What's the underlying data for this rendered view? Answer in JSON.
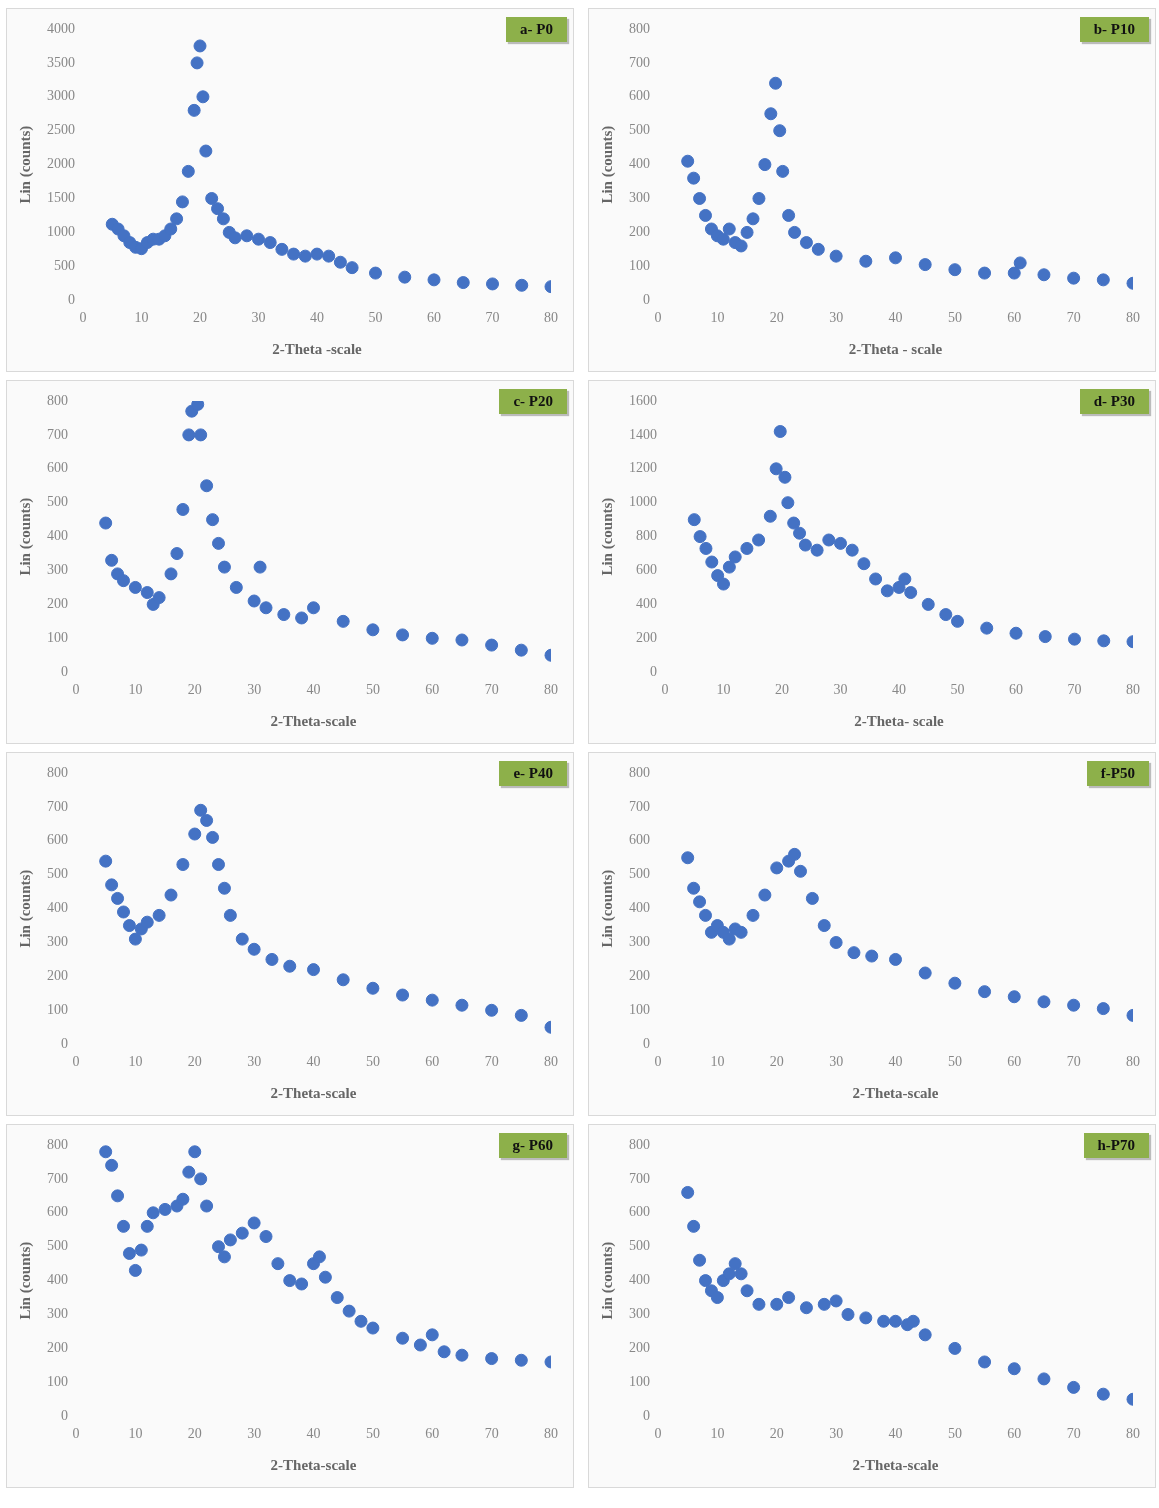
{
  "chart_data": [
    {
      "type": "scatter",
      "title": "a- P0",
      "xlabel": "2-Theta -scale",
      "ylabel": "Lin (counts)",
      "color": "#4472c4",
      "marker": "circle",
      "xlim": [
        0,
        80
      ],
      "xticks": [
        0,
        10,
        20,
        30,
        40,
        50,
        60,
        70,
        80
      ],
      "ylim": [
        0,
        4000
      ],
      "yticks": [
        0,
        500,
        1000,
        1500,
        2000,
        2500,
        3000,
        3500,
        4000
      ],
      "x": [
        5,
        6,
        7,
        8,
        9,
        10,
        11,
        12,
        13,
        14,
        15,
        16,
        17,
        18,
        19,
        19.5,
        20,
        20.5,
        21,
        22,
        23,
        24,
        25,
        26,
        28,
        30,
        32,
        34,
        36,
        38,
        40,
        42,
        44,
        46,
        50,
        55,
        60,
        65,
        70,
        75,
        80
      ],
      "values": [
        1120,
        1050,
        950,
        850,
        780,
        760,
        850,
        900,
        900,
        950,
        1050,
        1200,
        1450,
        1900,
        2800,
        3500,
        3750,
        3000,
        2200,
        1500,
        1350,
        1200,
        1000,
        920,
        950,
        900,
        850,
        750,
        680,
        650,
        680,
        650,
        560,
        480,
        400,
        340,
        300,
        260,
        240,
        220,
        200
      ]
    },
    {
      "type": "scatter",
      "title": "b- P10",
      "xlabel": "2-Theta - scale",
      "ylabel": "Lin (counts)",
      "color": "#4472c4",
      "marker": "circle",
      "xlim": [
        0,
        80
      ],
      "xticks": [
        0,
        10,
        20,
        30,
        40,
        50,
        60,
        70,
        80
      ],
      "ylim": [
        0,
        800
      ],
      "yticks": [
        0,
        100,
        200,
        300,
        400,
        500,
        600,
        700,
        800
      ],
      "x": [
        5,
        6,
        7,
        8,
        9,
        10,
        11,
        12,
        13,
        14,
        15,
        16,
        17,
        18,
        19,
        19.8,
        20.5,
        21,
        22,
        23,
        25,
        27,
        30,
        35,
        40,
        45,
        50,
        55,
        60,
        61,
        65,
        70,
        75,
        80
      ],
      "values": [
        410,
        360,
        300,
        250,
        210,
        190,
        180,
        210,
        170,
        160,
        200,
        240,
        300,
        400,
        550,
        640,
        500,
        380,
        250,
        200,
        170,
        150,
        130,
        115,
        125,
        105,
        90,
        80,
        80,
        110,
        75,
        65,
        60,
        50
      ]
    },
    {
      "type": "scatter",
      "title": "c- P20",
      "xlabel": "2-Theta-scale",
      "ylabel": "Lin (counts)",
      "color": "#4472c4",
      "marker": "circle",
      "xlim": [
        0,
        80
      ],
      "xticks": [
        0,
        10,
        20,
        30,
        40,
        50,
        60,
        70,
        80
      ],
      "ylim": [
        0,
        800
      ],
      "yticks": [
        0,
        100,
        200,
        300,
        400,
        500,
        600,
        700,
        800
      ],
      "x": [
        5,
        6,
        7,
        8,
        10,
        12,
        13,
        14,
        16,
        17,
        18,
        19,
        19.5,
        20.5,
        21,
        22,
        23,
        24,
        25,
        27,
        30,
        31,
        32,
        35,
        38,
        40,
        45,
        50,
        55,
        60,
        65,
        70,
        75,
        80
      ],
      "values": [
        440,
        330,
        290,
        270,
        250,
        235,
        200,
        220,
        290,
        350,
        480,
        700,
        770,
        790,
        700,
        550,
        450,
        380,
        310,
        250,
        210,
        310,
        190,
        170,
        160,
        190,
        150,
        125,
        110,
        100,
        95,
        80,
        65,
        50
      ]
    },
    {
      "type": "scatter",
      "title": "d- P30",
      "xlabel": "2-Theta- scale",
      "ylabel": "Lin (counts)",
      "color": "#4472c4",
      "marker": "circle",
      "xlim": [
        0,
        80
      ],
      "xticks": [
        0,
        10,
        20,
        30,
        40,
        50,
        60,
        70,
        80
      ],
      "ylim": [
        0,
        1600
      ],
      "yticks": [
        0,
        200,
        400,
        600,
        800,
        1000,
        1200,
        1400,
        1600
      ],
      "x": [
        5,
        6,
        7,
        8,
        9,
        10,
        11,
        12,
        14,
        16,
        18,
        19,
        19.7,
        20.5,
        21,
        22,
        23,
        24,
        26,
        28,
        30,
        32,
        34,
        36,
        38,
        40,
        41,
        42,
        45,
        48,
        50,
        55,
        60,
        65,
        70,
        75,
        80
      ],
      "values": [
        900,
        800,
        730,
        650,
        570,
        520,
        620,
        680,
        730,
        780,
        920,
        1200,
        1420,
        1150,
        1000,
        880,
        820,
        750,
        720,
        780,
        760,
        720,
        640,
        550,
        480,
        500,
        550,
        470,
        400,
        340,
        300,
        260,
        230,
        210,
        195,
        185,
        180
      ]
    },
    {
      "type": "scatter",
      "title": "e- P40",
      "xlabel": "2-Theta-scale",
      "ylabel": "Lin (counts)",
      "color": "#4472c4",
      "marker": "circle",
      "xlim": [
        0,
        80
      ],
      "xticks": [
        0,
        10,
        20,
        30,
        40,
        50,
        60,
        70,
        80
      ],
      "ylim": [
        0,
        800
      ],
      "yticks": [
        0,
        100,
        200,
        300,
        400,
        500,
        600,
        700,
        800
      ],
      "x": [
        5,
        6,
        7,
        8,
        9,
        10,
        11,
        12,
        14,
        16,
        18,
        20,
        21,
        22,
        23,
        24,
        25,
        26,
        28,
        30,
        33,
        36,
        40,
        45,
        50,
        55,
        60,
        65,
        70,
        75,
        80
      ],
      "values": [
        540,
        470,
        430,
        390,
        350,
        310,
        340,
        360,
        380,
        440,
        530,
        620,
        690,
        660,
        610,
        530,
        460,
        380,
        310,
        280,
        250,
        230,
        220,
        190,
        165,
        145,
        130,
        115,
        100,
        85,
        50
      ]
    },
    {
      "type": "scatter",
      "title": "f-P50",
      "xlabel": "2-Theta-scale",
      "ylabel": "Lin (counts)",
      "color": "#4472c4",
      "marker": "circle",
      "xlim": [
        0,
        80
      ],
      "xticks": [
        0,
        10,
        20,
        30,
        40,
        50,
        60,
        70,
        80
      ],
      "ylim": [
        0,
        800
      ],
      "yticks": [
        0,
        100,
        200,
        300,
        400,
        500,
        600,
        700,
        800
      ],
      "x": [
        5,
        6,
        7,
        8,
        9,
        10,
        11,
        12,
        13,
        14,
        16,
        18,
        20,
        22,
        23,
        24,
        26,
        28,
        30,
        33,
        36,
        40,
        45,
        50,
        55,
        60,
        65,
        70,
        75,
        80
      ],
      "values": [
        550,
        460,
        420,
        380,
        330,
        350,
        330,
        310,
        340,
        330,
        380,
        440,
        520,
        540,
        560,
        510,
        430,
        350,
        300,
        270,
        260,
        250,
        210,
        180,
        155,
        140,
        125,
        115,
        105,
        85
      ]
    },
    {
      "type": "scatter",
      "title": "g- P60",
      "xlabel": "2-Theta-scale",
      "ylabel": "Lin (counts)",
      "color": "#4472c4",
      "marker": "circle",
      "xlim": [
        0,
        80
      ],
      "xticks": [
        0,
        10,
        20,
        30,
        40,
        50,
        60,
        70,
        80
      ],
      "ylim": [
        0,
        800
      ],
      "yticks": [
        0,
        100,
        200,
        300,
        400,
        500,
        600,
        700,
        800
      ],
      "x": [
        5,
        6,
        7,
        8,
        9,
        10,
        11,
        12,
        13,
        15,
        17,
        18,
        19,
        20,
        21,
        22,
        24,
        25,
        26,
        28,
        30,
        32,
        34,
        36,
        38,
        40,
        41,
        42,
        44,
        46,
        48,
        50,
        55,
        58,
        60,
        62,
        65,
        70,
        75,
        80
      ],
      "values": [
        780,
        740,
        650,
        560,
        480,
        430,
        490,
        560,
        600,
        610,
        620,
        640,
        720,
        780,
        700,
        620,
        500,
        470,
        520,
        540,
        570,
        530,
        450,
        400,
        390,
        450,
        470,
        410,
        350,
        310,
        280,
        260,
        230,
        210,
        240,
        190,
        180,
        170,
        165,
        160
      ]
    },
    {
      "type": "scatter",
      "title": "h-P70",
      "xlabel": "2-Theta-scale",
      "ylabel": "Lin (counts)",
      "color": "#4472c4",
      "marker": "circle",
      "xlim": [
        0,
        80
      ],
      "xticks": [
        0,
        10,
        20,
        30,
        40,
        50,
        60,
        70,
        80
      ],
      "ylim": [
        0,
        800
      ],
      "yticks": [
        0,
        100,
        200,
        300,
        400,
        500,
        600,
        700,
        800
      ],
      "x": [
        5,
        6,
        7,
        8,
        9,
        10,
        11,
        12,
        13,
        14,
        15,
        17,
        20,
        22,
        25,
        28,
        30,
        32,
        35,
        38,
        40,
        42,
        43,
        45,
        50,
        55,
        60,
        65,
        70,
        75,
        80
      ],
      "values": [
        660,
        560,
        460,
        400,
        370,
        350,
        400,
        420,
        450,
        420,
        370,
        330,
        330,
        350,
        320,
        330,
        340,
        300,
        290,
        280,
        280,
        270,
        280,
        240,
        200,
        160,
        140,
        110,
        85,
        65,
        50
      ]
    }
  ]
}
